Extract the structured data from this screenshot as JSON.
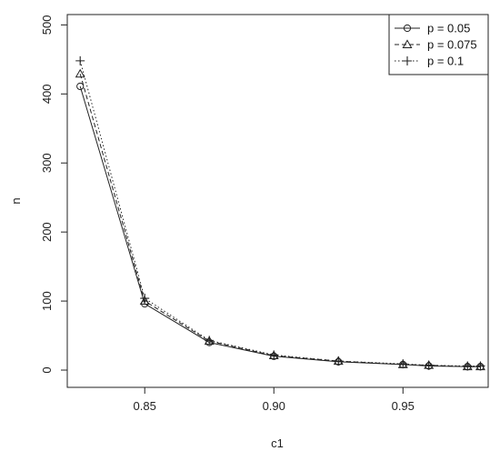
{
  "chart_data": {
    "type": "line",
    "title": "",
    "xlabel": "c1",
    "ylabel": "n",
    "xlim": [
      0.82,
      0.983
    ],
    "ylim": [
      -25,
      515
    ],
    "xticks": [
      0.85,
      0.9,
      0.95
    ],
    "xtick_labels": [
      "0.85",
      "0.90",
      "0.95"
    ],
    "yticks": [
      0,
      100,
      200,
      300,
      400,
      500
    ],
    "ytick_labels": [
      "0",
      "100",
      "200",
      "300",
      "400",
      "500"
    ],
    "grid": false,
    "legend_position": "top-right",
    "x": [
      0.825,
      0.85,
      0.875,
      0.9,
      0.925,
      0.95,
      0.96,
      0.975,
      0.98
    ],
    "series": [
      {
        "name": "p = 0.05",
        "marker": "circle",
        "line": "solid",
        "values": [
          411,
          96,
          40,
          20,
          12,
          8,
          6,
          5,
          5
        ]
      },
      {
        "name": "p = 0.075",
        "marker": "triangle",
        "line": "dashed",
        "values": [
          429,
          100,
          42,
          21,
          13,
          8,
          7,
          5,
          5
        ]
      },
      {
        "name": "p = 0.1",
        "marker": "plus",
        "line": "dotted",
        "values": [
          448,
          104,
          43,
          22,
          13,
          9,
          7,
          6,
          6
        ]
      }
    ],
    "colors": {
      "line": "#222222",
      "frame": "#222222"
    }
  }
}
